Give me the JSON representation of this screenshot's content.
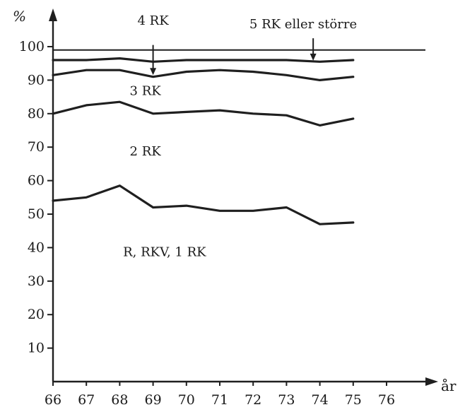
{
  "chart_data": {
    "type": "area",
    "title": "",
    "xlabel": "år",
    "ylabel": "%",
    "x_ticks": [
      "66",
      "67",
      "68",
      "69",
      "70",
      "71",
      "72",
      "73",
      "74",
      "75",
      "76"
    ],
    "y_ticks": [
      "10",
      "20",
      "30",
      "40",
      "50",
      "60",
      "70",
      "80",
      "90",
      "100"
    ],
    "xlim": [
      66,
      76.8
    ],
    "ylim": [
      0,
      100
    ],
    "grid": false,
    "legend": "none",
    "x": [
      66,
      67,
      68,
      69,
      70,
      71,
      72,
      73,
      74,
      75
    ],
    "boundaries": [
      {
        "values": [
          54,
          55,
          58.5,
          52,
          52.5,
          51,
          51,
          52,
          47,
          47.5
        ]
      },
      {
        "values": [
          80,
          82.5,
          83.5,
          80,
          80.5,
          81,
          80,
          79.5,
          76.5,
          78.5
        ]
      },
      {
        "values": [
          91.5,
          93,
          93,
          91,
          92.5,
          93,
          92.5,
          91.5,
          90,
          91
        ]
      },
      {
        "values": [
          96,
          96,
          96.5,
          95.5,
          96,
          96,
          96,
          96,
          95.5,
          96
        ]
      }
    ],
    "reference_line": {
      "value": 99
    },
    "region_labels": [
      {
        "text": "R, RKV, 1 RK"
      },
      {
        "text": "2 RK"
      },
      {
        "text": "3 RK"
      },
      {
        "text": "4 RK"
      },
      {
        "text": "5 RK eller större"
      }
    ]
  }
}
